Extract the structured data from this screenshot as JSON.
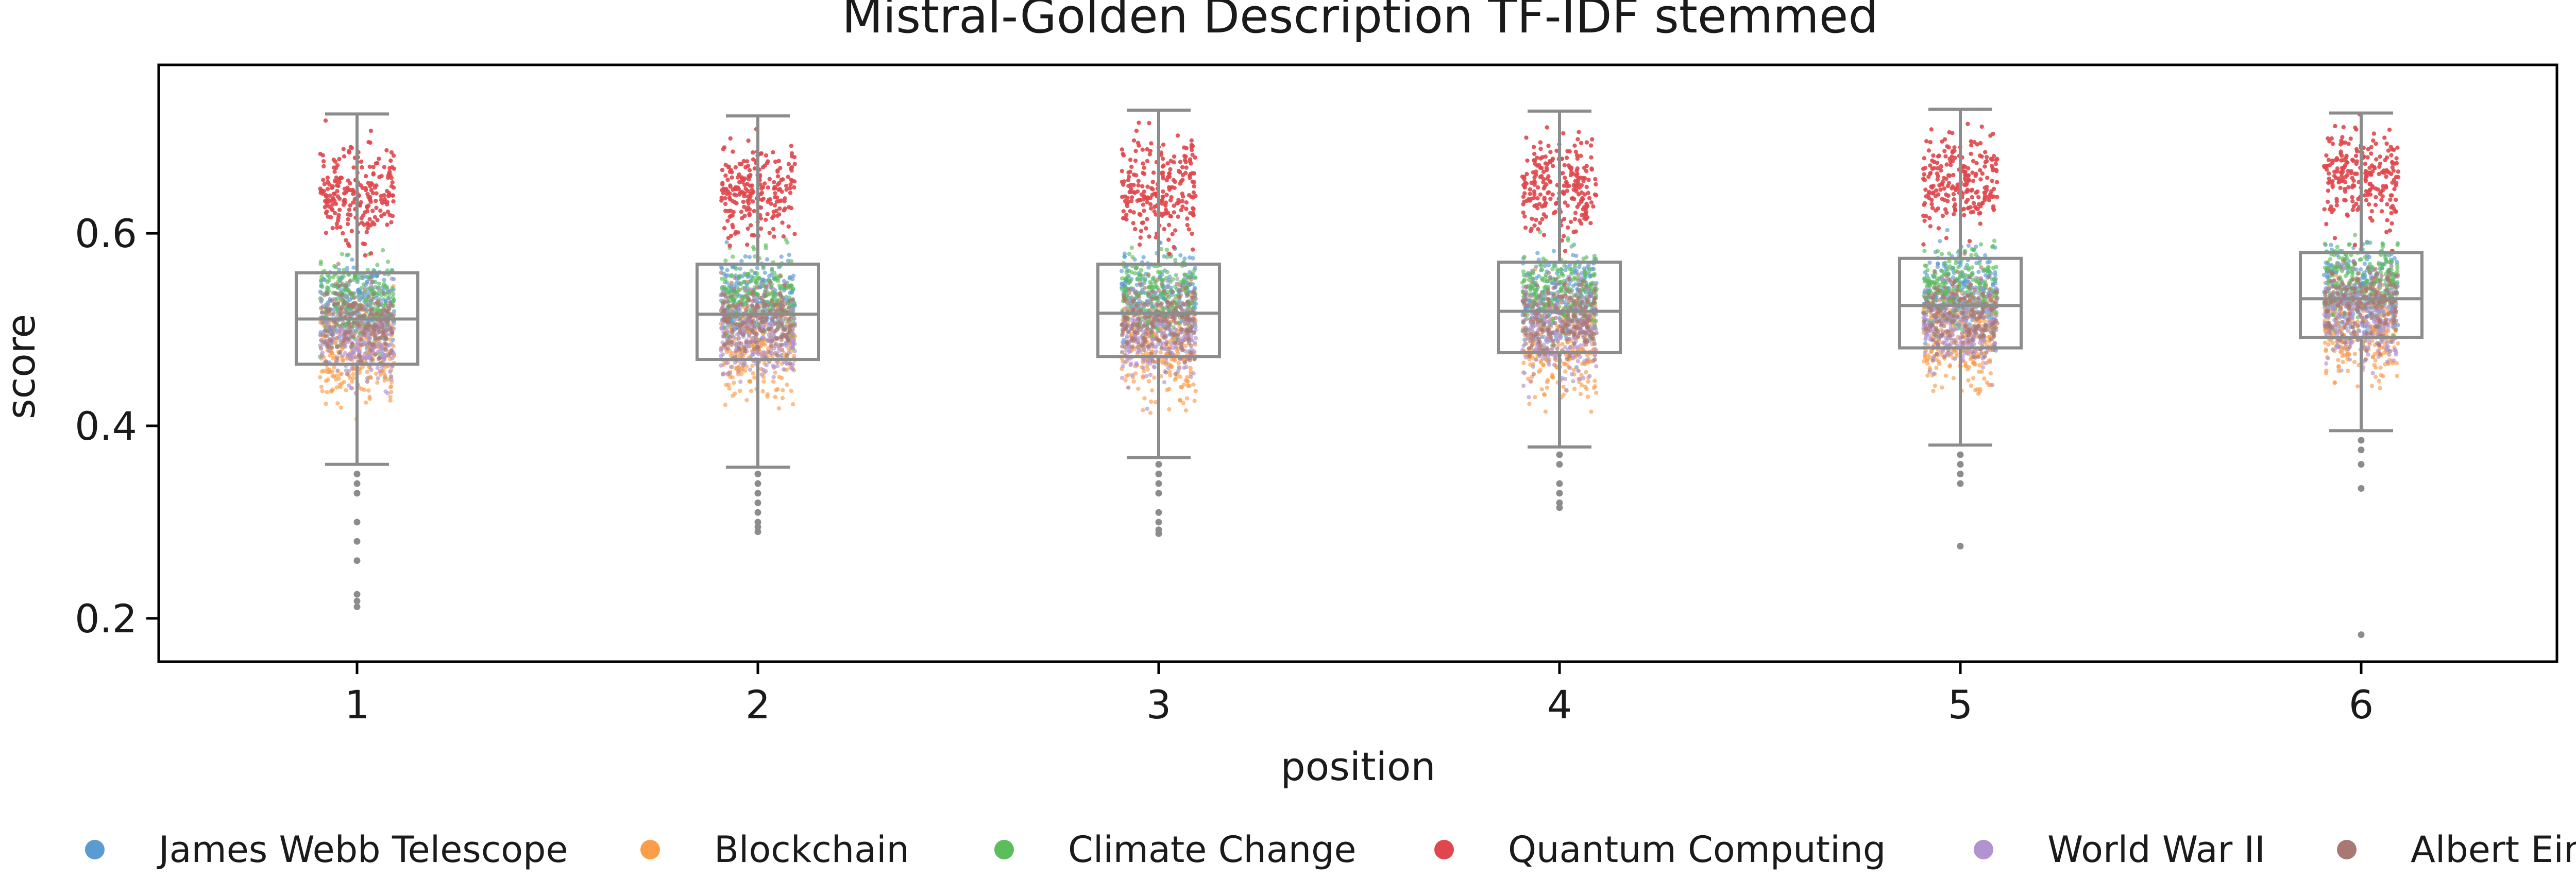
{
  "chart_data": {
    "type": "box-strip",
    "title": "Mistral-Golden Description TF-IDF stemmed",
    "xlabel": "position",
    "ylabel": "score",
    "categories": [
      "1",
      "2",
      "3",
      "4",
      "5",
      "6"
    ],
    "ylim": [
      0.155,
      0.775
    ],
    "yticks": [
      0.2,
      0.4,
      0.6
    ],
    "ytick_labels": [
      "0.2",
      "0.4",
      "0.6"
    ],
    "grid": false,
    "legend_position": "bottom",
    "boxes": [
      {
        "category": "1",
        "q1": 0.464,
        "median": 0.511,
        "q3": 0.559,
        "whisker_low": 0.36,
        "whisker_high": 0.724,
        "outliers": [
          0.35,
          0.34,
          0.33,
          0.3,
          0.28,
          0.26,
          0.225,
          0.218,
          0.212
        ]
      },
      {
        "category": "2",
        "q1": 0.469,
        "median": 0.516,
        "q3": 0.568,
        "whisker_low": 0.357,
        "whisker_high": 0.722,
        "outliers": [
          0.35,
          0.34,
          0.33,
          0.32,
          0.31,
          0.3,
          0.295,
          0.29
        ]
      },
      {
        "category": "3",
        "q1": 0.472,
        "median": 0.517,
        "q3": 0.568,
        "whisker_low": 0.367,
        "whisker_high": 0.728,
        "outliers": [
          0.36,
          0.35,
          0.34,
          0.33,
          0.31,
          0.3,
          0.292,
          0.288
        ]
      },
      {
        "category": "4",
        "q1": 0.476,
        "median": 0.519,
        "q3": 0.57,
        "whisker_low": 0.378,
        "whisker_high": 0.727,
        "outliers": [
          0.37,
          0.36,
          0.34,
          0.33,
          0.32,
          0.315
        ]
      },
      {
        "category": "5",
        "q1": 0.481,
        "median": 0.525,
        "q3": 0.574,
        "whisker_low": 0.38,
        "whisker_high": 0.729,
        "outliers": [
          0.37,
          0.36,
          0.35,
          0.34,
          0.275
        ]
      },
      {
        "category": "6",
        "q1": 0.492,
        "median": 0.532,
        "q3": 0.58,
        "whisker_low": 0.395,
        "whisker_high": 0.725,
        "outliers": [
          0.385,
          0.375,
          0.36,
          0.335,
          0.183
        ]
      }
    ],
    "series": [
      {
        "name": "James Webb Telescope",
        "color": "#5b9bd0",
        "center": 0.525,
        "spread": 0.045
      },
      {
        "name": "Blockchain",
        "color": "#fb9d49",
        "center": 0.475,
        "spread": 0.05
      },
      {
        "name": "Climate Change",
        "color": "#5cbd5c",
        "center": 0.53,
        "spread": 0.04
      },
      {
        "name": "Quantum Computing",
        "color": "#e0474c",
        "center": 0.64,
        "spread": 0.05
      },
      {
        "name": "World War II",
        "color": "#b194cf",
        "center": 0.49,
        "spread": 0.045
      },
      {
        "name": "Albert Einstein",
        "color": "#a97872",
        "center": 0.505,
        "spread": 0.04
      }
    ],
    "points_per_series_per_position": 230,
    "box_color": "#8c8c8c"
  }
}
